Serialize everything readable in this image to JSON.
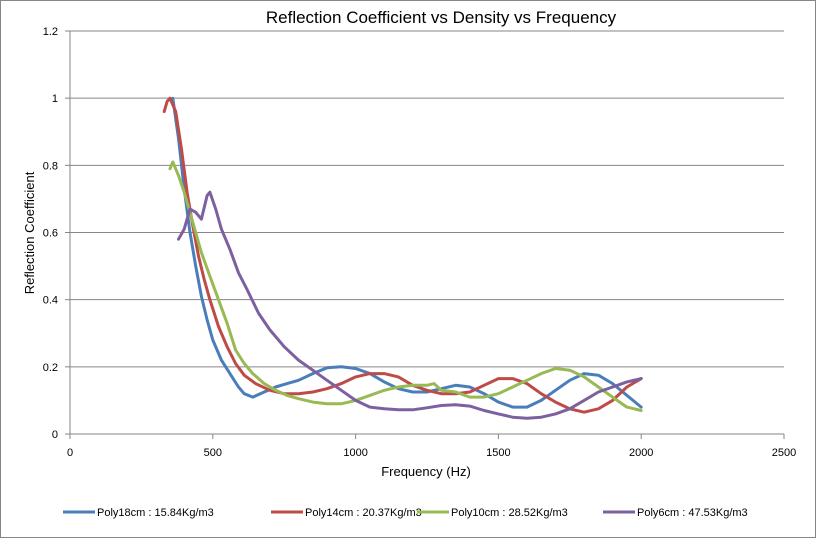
{
  "chart_data": {
    "type": "line",
    "title": "Reflection Coefficient vs Density vs Frequency",
    "xlabel": "Frequency (Hz)",
    "ylabel": "Reflection Coefficient",
    "xlim": [
      0,
      2500
    ],
    "ylim": [
      0,
      1.2
    ],
    "xticks": [
      0,
      500,
      1000,
      1500,
      2000,
      2500
    ],
    "yticks": [
      0,
      0.2,
      0.4,
      0.6,
      0.8,
      1,
      1.2
    ],
    "ytick_labels": [
      "0",
      "0.2",
      "0.4",
      "0.6",
      "0.8",
      "1",
      "1.2"
    ],
    "grid": "horizontal",
    "legend_position": "bottom",
    "series": [
      {
        "name": "Poly18cm : 15.84Kg/m3",
        "color": "#4A7EBB",
        "points": [
          [
            360,
            1.0
          ],
          [
            380,
            0.88
          ],
          [
            400,
            0.73
          ],
          [
            420,
            0.6
          ],
          [
            440,
            0.5
          ],
          [
            460,
            0.41
          ],
          [
            480,
            0.34
          ],
          [
            500,
            0.28
          ],
          [
            530,
            0.22
          ],
          [
            560,
            0.18
          ],
          [
            590,
            0.14
          ],
          [
            610,
            0.12
          ],
          [
            640,
            0.11
          ],
          [
            680,
            0.125
          ],
          [
            720,
            0.14
          ],
          [
            760,
            0.15
          ],
          [
            800,
            0.16
          ],
          [
            850,
            0.18
          ],
          [
            900,
            0.197
          ],
          [
            950,
            0.2
          ],
          [
            1000,
            0.195
          ],
          [
            1050,
            0.18
          ],
          [
            1100,
            0.155
          ],
          [
            1150,
            0.135
          ],
          [
            1200,
            0.125
          ],
          [
            1250,
            0.125
          ],
          [
            1300,
            0.135
          ],
          [
            1350,
            0.145
          ],
          [
            1400,
            0.14
          ],
          [
            1450,
            0.12
          ],
          [
            1500,
            0.095
          ],
          [
            1550,
            0.08
          ],
          [
            1600,
            0.08
          ],
          [
            1650,
            0.1
          ],
          [
            1700,
            0.13
          ],
          [
            1750,
            0.16
          ],
          [
            1800,
            0.18
          ],
          [
            1850,
            0.175
          ],
          [
            1900,
            0.15
          ],
          [
            1950,
            0.115
          ],
          [
            2000,
            0.08
          ]
        ]
      },
      {
        "name": "Poly14cm : 20.37Kg/m3",
        "color": "#BE4B48",
        "points": [
          [
            330,
            0.96
          ],
          [
            340,
            0.99
          ],
          [
            350,
            1.0
          ],
          [
            370,
            0.96
          ],
          [
            390,
            0.85
          ],
          [
            410,
            0.72
          ],
          [
            430,
            0.62
          ],
          [
            450,
            0.53
          ],
          [
            470,
            0.46
          ],
          [
            490,
            0.4
          ],
          [
            520,
            0.32
          ],
          [
            550,
            0.26
          ],
          [
            580,
            0.21
          ],
          [
            610,
            0.175
          ],
          [
            650,
            0.15
          ],
          [
            700,
            0.13
          ],
          [
            750,
            0.12
          ],
          [
            800,
            0.12
          ],
          [
            850,
            0.125
          ],
          [
            900,
            0.135
          ],
          [
            950,
            0.15
          ],
          [
            1000,
            0.17
          ],
          [
            1050,
            0.18
          ],
          [
            1100,
            0.18
          ],
          [
            1150,
            0.17
          ],
          [
            1200,
            0.145
          ],
          [
            1250,
            0.13
          ],
          [
            1300,
            0.12
          ],
          [
            1350,
            0.12
          ],
          [
            1400,
            0.125
          ],
          [
            1450,
            0.145
          ],
          [
            1500,
            0.165
          ],
          [
            1550,
            0.165
          ],
          [
            1600,
            0.15
          ],
          [
            1650,
            0.12
          ],
          [
            1700,
            0.095
          ],
          [
            1750,
            0.075
          ],
          [
            1800,
            0.065
          ],
          [
            1850,
            0.075
          ],
          [
            1900,
            0.1
          ],
          [
            1950,
            0.14
          ],
          [
            2000,
            0.165
          ]
        ]
      },
      {
        "name": "Poly10cm : 28.52Kg/m3",
        "color": "#98B954",
        "points": [
          [
            350,
            0.79
          ],
          [
            360,
            0.81
          ],
          [
            380,
            0.77
          ],
          [
            400,
            0.72
          ],
          [
            430,
            0.63
          ],
          [
            460,
            0.54
          ],
          [
            490,
            0.47
          ],
          [
            520,
            0.4
          ],
          [
            550,
            0.33
          ],
          [
            580,
            0.25
          ],
          [
            610,
            0.21
          ],
          [
            640,
            0.18
          ],
          [
            680,
            0.15
          ],
          [
            720,
            0.13
          ],
          [
            760,
            0.115
          ],
          [
            800,
            0.105
          ],
          [
            850,
            0.095
          ],
          [
            900,
            0.09
          ],
          [
            950,
            0.09
          ],
          [
            1000,
            0.1
          ],
          [
            1050,
            0.115
          ],
          [
            1100,
            0.13
          ],
          [
            1150,
            0.14
          ],
          [
            1200,
            0.145
          ],
          [
            1250,
            0.145
          ],
          [
            1275,
            0.15
          ],
          [
            1300,
            0.13
          ],
          [
            1350,
            0.125
          ],
          [
            1400,
            0.11
          ],
          [
            1450,
            0.11
          ],
          [
            1500,
            0.12
          ],
          [
            1550,
            0.14
          ],
          [
            1600,
            0.16
          ],
          [
            1650,
            0.18
          ],
          [
            1700,
            0.195
          ],
          [
            1750,
            0.19
          ],
          [
            1800,
            0.17
          ],
          [
            1850,
            0.14
          ],
          [
            1900,
            0.11
          ],
          [
            1950,
            0.08
          ],
          [
            2000,
            0.07
          ]
        ]
      },
      {
        "name": "Poly6cm : 47.53Kg/m3",
        "color": "#7D60A0",
        "points": [
          [
            380,
            0.58
          ],
          [
            400,
            0.61
          ],
          [
            420,
            0.67
          ],
          [
            440,
            0.66
          ],
          [
            460,
            0.64
          ],
          [
            480,
            0.71
          ],
          [
            490,
            0.72
          ],
          [
            510,
            0.67
          ],
          [
            530,
            0.61
          ],
          [
            560,
            0.55
          ],
          [
            590,
            0.48
          ],
          [
            620,
            0.43
          ],
          [
            660,
            0.36
          ],
          [
            700,
            0.31
          ],
          [
            750,
            0.26
          ],
          [
            800,
            0.22
          ],
          [
            850,
            0.19
          ],
          [
            900,
            0.16
          ],
          [
            950,
            0.13
          ],
          [
            1000,
            0.1
          ],
          [
            1050,
            0.08
          ],
          [
            1100,
            0.075
          ],
          [
            1150,
            0.072
          ],
          [
            1200,
            0.072
          ],
          [
            1250,
            0.078
          ],
          [
            1300,
            0.085
          ],
          [
            1350,
            0.087
          ],
          [
            1400,
            0.083
          ],
          [
            1450,
            0.07
          ],
          [
            1500,
            0.06
          ],
          [
            1550,
            0.05
          ],
          [
            1600,
            0.047
          ],
          [
            1650,
            0.05
          ],
          [
            1700,
            0.06
          ],
          [
            1750,
            0.075
          ],
          [
            1800,
            0.1
          ],
          [
            1850,
            0.125
          ],
          [
            1900,
            0.14
          ],
          [
            1950,
            0.155
          ],
          [
            2000,
            0.165
          ]
        ]
      }
    ]
  }
}
